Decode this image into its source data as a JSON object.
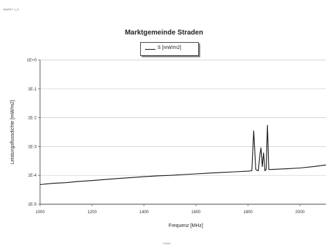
{
  "header": {
    "corner_text": "MARKT 1_S"
  },
  "footer": {
    "text": "Cosec"
  },
  "chart_data": {
    "type": "line",
    "title": "Marktgemeinde Straden",
    "xlabel": "Frequenz [MHz]",
    "ylabel": "Leistungsflussdichte [mW/m2]",
    "xlim": [
      1000,
      2100
    ],
    "ylim_exponent": [
      -5,
      0
    ],
    "y_scale": "log",
    "grid": "horizontal",
    "legend": "top-center",
    "x_ticks": [
      1000,
      1200,
      1400,
      1600,
      1800,
      2000
    ],
    "y_ticks": [
      {
        "exp": 0,
        "label": "1E+0"
      },
      {
        "exp": -1,
        "label": "1E-1"
      },
      {
        "exp": -2,
        "label": "1E-2"
      },
      {
        "exp": -3,
        "label": "1E-3"
      },
      {
        "exp": -4,
        "label": "1E-4"
      },
      {
        "exp": -5,
        "label": "1E-5"
      }
    ],
    "series": [
      {
        "name": "S [mW/m2]",
        "color": "#111111",
        "x": [
          1000,
          1050,
          1100,
          1150,
          1200,
          1250,
          1300,
          1350,
          1400,
          1450,
          1500,
          1550,
          1600,
          1650,
          1700,
          1750,
          1800,
          1815,
          1822,
          1830,
          1840,
          1845,
          1850,
          1855,
          1860,
          1865,
          1870,
          1875,
          1880,
          1900,
          1950,
          2000,
          2050,
          2100
        ],
        "y": [
          4.8e-05,
          5.3e-05,
          5.6e-05,
          6.2e-05,
          6.6e-05,
          7.2e-05,
          7.8e-05,
          8.4e-05,
          9e-05,
          9.6e-05,
          0.0001,
          0.000107,
          0.000113,
          0.00012,
          0.000127,
          0.000133,
          0.00014,
          0.000145,
          0.0035,
          0.00016,
          0.000145,
          0.00045,
          0.0009,
          0.0002,
          0.0006,
          0.000145,
          0.00016,
          0.0055,
          0.00016,
          0.000162,
          0.00017,
          0.00018,
          0.0002,
          0.00023
        ]
      }
    ]
  }
}
